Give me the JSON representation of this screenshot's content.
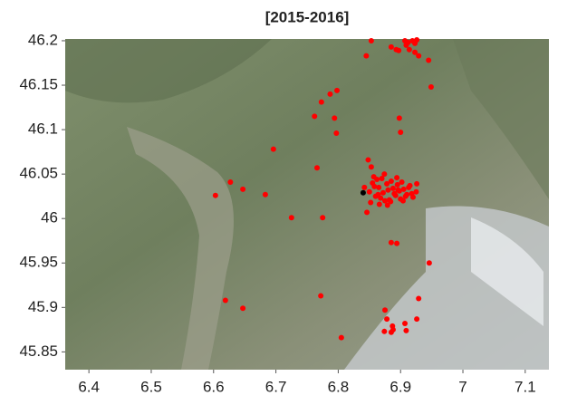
{
  "chart_data": {
    "type": "scatter",
    "title": "[2015-2016]",
    "xlim": [
      6.362,
      7.138
    ],
    "ylim": [
      45.83,
      46.202
    ],
    "xticks": [
      6.4,
      6.5,
      6.6,
      6.7,
      6.8,
      6.9,
      7,
      7.1
    ],
    "yticks": [
      45.85,
      45.9,
      45.95,
      46,
      46.05,
      46.1,
      46.15,
      46.2
    ],
    "series": [
      {
        "color": "#ff0000",
        "x": [
          6.853,
          6.885,
          6.893,
          6.909,
          6.912,
          6.919,
          6.923,
          6.926,
          6.914,
          6.923,
          6.929,
          6.907,
          6.897,
          6.845,
          6.945,
          6.949,
          6.798,
          6.787,
          6.794,
          6.762,
          6.773,
          6.898,
          6.9,
          6.797,
          6.696,
          6.766,
          6.848,
          6.853,
          6.926,
          6.603,
          6.627,
          6.647,
          6.683,
          6.725,
          6.775,
          6.846,
          6.885,
          6.894,
          6.946,
          6.772,
          6.619,
          6.647,
          6.805,
          6.875,
          6.929,
          6.878,
          6.887,
          6.874,
          6.885,
          6.907,
          6.926,
          6.909,
          6.888,
          6.85,
          6.855,
          6.86,
          6.865,
          6.87,
          6.875,
          6.88,
          6.885,
          6.89,
          6.895,
          6.9,
          6.905,
          6.91,
          6.915,
          6.92,
          6.925,
          6.852,
          6.858,
          6.862,
          6.868,
          6.872,
          6.878,
          6.882,
          6.888,
          6.892,
          6.898,
          6.902,
          6.908,
          6.913,
          6.918,
          6.857,
          6.866,
          6.874,
          6.884,
          6.894,
          6.904,
          6.864,
          6.879,
          6.896,
          6.842
        ],
        "values": [
          46.2,
          46.193,
          46.19,
          46.195,
          46.198,
          46.2,
          46.197,
          46.201,
          46.19,
          46.187,
          46.183,
          46.2,
          46.189,
          46.183,
          46.178,
          46.148,
          46.144,
          46.14,
          46.113,
          46.115,
          46.131,
          46.113,
          46.097,
          46.096,
          46.078,
          46.057,
          46.066,
          46.058,
          46.039,
          46.026,
          46.041,
          46.033,
          46.027,
          46.001,
          46.001,
          46.007,
          45.973,
          45.972,
          45.95,
          45.913,
          45.908,
          45.899,
          45.866,
          45.897,
          45.91,
          45.887,
          45.879,
          45.873,
          45.872,
          45.882,
          45.887,
          45.874,
          45.875,
          46.03,
          46.04,
          46.025,
          46.035,
          46.045,
          46.02,
          46.032,
          46.042,
          46.028,
          46.038,
          46.022,
          46.033,
          46.027,
          46.037,
          46.024,
          46.03,
          46.018,
          46.036,
          46.044,
          46.023,
          46.029,
          46.039,
          46.021,
          46.034,
          46.026,
          46.031,
          46.041,
          46.025,
          46.035,
          46.028,
          46.047,
          46.016,
          46.05,
          46.019,
          46.046,
          46.02,
          46.027,
          46.015,
          46.032,
          46.035
        ]
      },
      {
        "color": "#000000",
        "x": [
          6.84
        ],
        "values": [
          46.029
        ]
      }
    ]
  }
}
